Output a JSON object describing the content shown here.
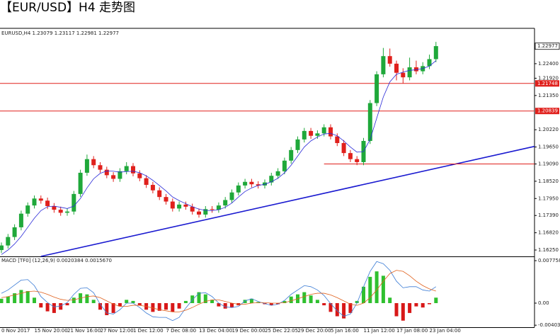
{
  "chart_data": [
    {
      "type": "candlestick",
      "title": "【EUR/USD】H4 走势图",
      "header": "EURUSD,H4 1.23079 1.23117 1.22981 1.22977",
      "up_color": "#1fa83a",
      "down_color": "#e0201c",
      "categories": [
        "0 Nov 2017",
        null,
        null,
        null,
        null,
        "15 Nov 20:00",
        null,
        null,
        null,
        null,
        "21 Nov 16:00",
        null,
        null,
        null,
        null,
        "27 Nov 12:00",
        null,
        null,
        null,
        null,
        "1 Dec 12:00",
        null,
        null,
        null,
        null,
        "7 Dec 08:00",
        null,
        null,
        null,
        null,
        "13 Dec 04:00",
        null,
        null,
        null,
        null,
        "19 Dec 00:00",
        null,
        null,
        null,
        null,
        "25 Dec 22:05",
        null,
        null,
        null,
        null,
        "29 Dec 20:00",
        null,
        null,
        null,
        null,
        "5 Jan 16:00",
        null,
        null,
        null,
        null,
        "11 Jan 12:00",
        null,
        null,
        null,
        null,
        "17 Jan 08:00",
        null,
        null,
        null,
        null,
        "23 Jan 04:00",
        null
      ],
      "open": [
        1.1625,
        1.164,
        1.1668,
        1.17,
        1.1745,
        1.1772,
        1.1795,
        1.1788,
        1.177,
        1.1758,
        1.1748,
        1.1752,
        1.181,
        1.188,
        1.1925,
        1.1905,
        1.189,
        1.1872,
        1.186,
        1.1885,
        1.1902,
        1.1878,
        1.1862,
        1.184,
        1.1822,
        1.18,
        1.1785,
        1.1762,
        1.1775,
        1.1768,
        1.1752,
        1.1742,
        1.176,
        1.1758,
        1.1772,
        1.179,
        1.1815,
        1.1838,
        1.185,
        1.1842,
        1.1838,
        1.1848,
        1.187,
        1.1885,
        1.192,
        1.1955,
        1.199,
        1.2018,
        1.2002,
        1.201,
        1.203,
        1.2,
        1.1978,
        1.1945,
        1.1925,
        1.1915,
        1.1985,
        1.211,
        1.2205,
        1.2265,
        1.224,
        1.221,
        1.2195,
        1.2228,
        1.2215,
        1.2232,
        1.2255
      ],
      "high": [
        1.165,
        1.1678,
        1.171,
        1.1755,
        1.1782,
        1.1805,
        1.1805,
        1.1798,
        1.178,
        1.1768,
        1.1762,
        1.182,
        1.189,
        1.194,
        1.1935,
        1.1915,
        1.19,
        1.1882,
        1.1895,
        1.1915,
        1.1912,
        1.1888,
        1.1872,
        1.185,
        1.1832,
        1.181,
        1.1795,
        1.1785,
        1.1785,
        1.1778,
        1.1762,
        1.177,
        1.177,
        1.1782,
        1.18,
        1.1825,
        1.1848,
        1.186,
        1.186,
        1.1852,
        1.1858,
        1.188,
        1.1895,
        1.193,
        1.1965,
        1.2,
        1.2028,
        1.2028,
        1.202,
        1.204,
        1.204,
        1.201,
        1.1988,
        1.1955,
        1.1935,
        1.1995,
        1.212,
        1.2215,
        1.2292,
        1.229,
        1.225,
        1.2225,
        1.226,
        1.225,
        1.2245,
        1.227,
        1.2312
      ],
      "low": [
        1.1615,
        1.163,
        1.1658,
        1.169,
        1.1735,
        1.1762,
        1.1778,
        1.176,
        1.1748,
        1.1738,
        1.1738,
        1.1742,
        1.18,
        1.187,
        1.1895,
        1.188,
        1.1862,
        1.185,
        1.185,
        1.1875,
        1.1868,
        1.1852,
        1.183,
        1.1812,
        1.179,
        1.1775,
        1.1752,
        1.1752,
        1.1758,
        1.1742,
        1.1732,
        1.1732,
        1.1748,
        1.1748,
        1.1762,
        1.178,
        1.1805,
        1.1828,
        1.1832,
        1.1828,
        1.1828,
        1.1838,
        1.186,
        1.1875,
        1.191,
        1.1945,
        1.198,
        1.1992,
        1.1992,
        1.2,
        1.199,
        1.1968,
        1.1935,
        1.1915,
        1.1905,
        1.1905,
        1.1975,
        1.21,
        1.2195,
        1.223,
        1.2185,
        1.2175,
        1.2185,
        1.2205,
        1.2205,
        1.2222,
        1.2245
      ],
      "close": [
        1.164,
        1.1668,
        1.17,
        1.1745,
        1.1772,
        1.1795,
        1.1788,
        1.177,
        1.1758,
        1.1748,
        1.1752,
        1.181,
        1.188,
        1.1925,
        1.1905,
        1.189,
        1.1872,
        1.186,
        1.1885,
        1.1902,
        1.1878,
        1.1862,
        1.184,
        1.1822,
        1.18,
        1.1785,
        1.1762,
        1.1775,
        1.1768,
        1.1752,
        1.1742,
        1.176,
        1.1758,
        1.1772,
        1.179,
        1.1815,
        1.1838,
        1.185,
        1.1842,
        1.1838,
        1.1848,
        1.187,
        1.1885,
        1.192,
        1.1955,
        1.199,
        1.2018,
        1.2002,
        1.201,
        1.203,
        1.2,
        1.1978,
        1.1945,
        1.1925,
        1.1915,
        1.1985,
        1.211,
        1.2205,
        1.2265,
        1.224,
        1.221,
        1.2195,
        1.2228,
        1.2215,
        1.2232,
        1.2255,
        1.2298
      ],
      "ma": {
        "color": "#2a2ad8",
        "values": [
          1.161,
          1.1625,
          1.1645,
          1.167,
          1.17,
          1.173,
          1.1755,
          1.1768,
          1.177,
          1.1766,
          1.1762,
          1.177,
          1.1795,
          1.183,
          1.186,
          1.1878,
          1.1886,
          1.1885,
          1.1882,
          1.1884,
          1.1885,
          1.188,
          1.187,
          1.1855,
          1.1838,
          1.182,
          1.18,
          1.1788,
          1.1778,
          1.1768,
          1.176,
          1.1756,
          1.1755,
          1.1758,
          1.1766,
          1.178,
          1.18,
          1.1818,
          1.183,
          1.1838,
          1.1842,
          1.185,
          1.1862,
          1.188,
          1.1905,
          1.1935,
          1.1965,
          1.1985,
          1.1998,
          1.2008,
          1.201,
          1.2002,
          1.1985,
          1.1965,
          1.1948,
          1.195,
          1.199,
          1.206,
          1.213,
          1.218,
          1.2205,
          1.2212,
          1.2218,
          1.222,
          1.2224,
          1.2232,
          1.225
        ]
      },
      "ylim": [
        1.1604,
        1.2352
      ],
      "yticks": [
        {
          "value": 1.224,
          "label": "1.22400"
        },
        {
          "value": 1.2192,
          "label": "1.21920"
        },
        {
          "value": 1.2135,
          "label": "1.21350"
        },
        {
          "value": 1.2022,
          "label": "1.20220"
        },
        {
          "value": 1.1965,
          "label": "1.19650"
        },
        {
          "value": 1.1909,
          "label": "1.19090"
        },
        {
          "value": 1.1852,
          "label": "1.18520"
        },
        {
          "value": 1.1795,
          "label": "1.17950"
        },
        {
          "value": 1.1739,
          "label": "1.17390"
        },
        {
          "value": 1.1682,
          "label": "1.16820"
        },
        {
          "value": 1.1625,
          "label": "1.16250"
        }
      ],
      "hlines": {
        "color": "#e0201c",
        "lines": [
          {
            "value": 1.21748,
            "label": "1.21748"
          },
          {
            "value": 1.20839,
            "label": "1.20839"
          }
        ]
      },
      "last_price": {
        "value": 1.22977,
        "label": "1.22977"
      },
      "trendline": {
        "color": "#1a1ad0",
        "x": [
          6,
          81
        ],
        "y": [
          1.1604,
          1.1967
        ]
      },
      "support": {
        "color": "#e0201c",
        "x": [
          49,
          81
        ],
        "y": [
          1.1909,
          1.1909
        ]
      }
    },
    {
      "type": "macd",
      "header": "MACD [TF0] (12,26,9) 0.0020384 0.0015670",
      "pos_color": "#2fc02f",
      "neg_color": "#d81818",
      "histogram": [
        0.0008,
        0.0012,
        0.0018,
        0.0024,
        0.0022,
        0.001,
        -0.0008,
        -0.0015,
        -0.0018,
        -0.0012,
        -0.0004,
        0.001,
        0.0018,
        0.0016,
        0.0006,
        -0.0012,
        -0.0022,
        -0.0018,
        -0.0006,
        0.0006,
        0.0004,
        -0.0004,
        -0.0012,
        -0.0016,
        -0.0014,
        -0.0012,
        -0.0016,
        -0.001,
        0.0004,
        0.0014,
        0.002,
        0.0016,
        0.0006,
        -0.0006,
        -0.001,
        -0.0008,
        -0.0004,
        0.0006,
        0.0008,
        0.0002,
        -0.0002,
        -0.0004,
        -0.0002,
        0.0004,
        0.0012,
        0.0016,
        0.002,
        0.0014,
        0.0006,
        -0.0004,
        -0.0016,
        -0.0024,
        -0.0028,
        -0.0018,
        0.0004,
        0.003,
        0.0048,
        0.0058,
        0.005,
        0.001,
        -0.0024,
        -0.0032,
        -0.0018,
        -0.0006,
        -0.0008,
        -0.0002,
        0.001
      ],
      "macd_line": {
        "color": "#3a7bd5",
        "values": [
          0.0018,
          0.0024,
          0.0033,
          0.0042,
          0.0043,
          0.0032,
          0.0012,
          0.0001,
          -0.0007,
          -0.0005,
          0.0001,
          0.0016,
          0.0027,
          0.0028,
          0.0019,
          -0.0002,
          -0.0018,
          -0.002,
          -0.0012,
          0.0,
          0.0,
          -0.0008,
          -0.0018,
          -0.0025,
          -0.0026,
          -0.0026,
          -0.0032,
          -0.0026,
          -0.0009,
          0.0006,
          0.0018,
          0.0019,
          0.0012,
          0.0,
          -0.0007,
          -0.0008,
          -0.0006,
          0.0004,
          0.0008,
          0.0003,
          -0.0001,
          -0.0004,
          -0.0002,
          0.0005,
          0.0016,
          0.0024,
          0.0032,
          0.003,
          0.0024,
          0.0014,
          -0.0001,
          -0.0014,
          -0.0024,
          -0.002,
          0.0,
          0.003,
          0.0058,
          0.0076,
          0.0072,
          0.006,
          0.004,
          0.0028,
          0.003,
          0.003,
          0.0024,
          0.0022,
          0.003
        ]
      },
      "signal_line": {
        "color": "#e0601c",
        "values": [
          0.001,
          0.0012,
          0.0015,
          0.0018,
          0.0021,
          0.0022,
          0.002,
          0.0016,
          0.0011,
          0.0007,
          0.0005,
          0.0006,
          0.0009,
          0.0012,
          0.0013,
          0.001,
          0.0004,
          -0.0002,
          -0.0006,
          -0.0006,
          -0.0004,
          -0.0004,
          -0.0006,
          -0.0009,
          -0.0012,
          -0.0014,
          -0.0016,
          -0.0016,
          -0.0013,
          -0.0008,
          -0.0002,
          0.0003,
          0.0006,
          0.0006,
          0.0003,
          0.0,
          -0.0002,
          -0.0002,
          0.0,
          0.0001,
          0.0001,
          0.0,
          0.0,
          0.0001,
          0.0004,
          0.0008,
          0.0012,
          0.0016,
          0.0018,
          0.0018,
          0.0015,
          0.001,
          0.0004,
          -0.0002,
          -0.0004,
          0.0,
          0.001,
          0.0024,
          0.004,
          0.0054,
          0.006,
          0.0058,
          0.005,
          0.004,
          0.0032,
          0.0026,
          0.0022
        ]
      },
      "ylim": [
        -0.0044,
        0.00815
      ],
      "yticks": [
        0.0077583,
        {
          "value": 0,
          "label": "0.00"
        },
        -0.004034
      ]
    }
  ]
}
